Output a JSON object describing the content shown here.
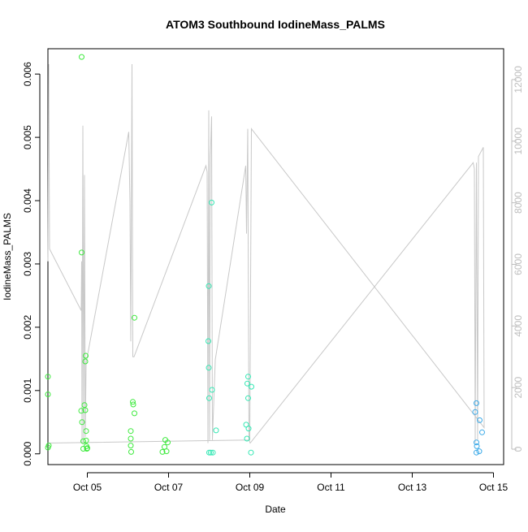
{
  "chart_data": {
    "type": "scatter",
    "title": "ATOM3 Southbound IodineMass_PALMS",
    "xlabel": "Date",
    "ylabel": "IodineMass_PALMS",
    "x_ticks": [
      "Oct 05",
      "Oct 07",
      "Oct 09",
      "Oct 11",
      "Oct 13",
      "Oct 15"
    ],
    "y_ticks": [
      "0.000",
      "0.001",
      "0.002",
      "0.003",
      "0.004",
      "0.005",
      "0.006"
    ],
    "y2_ticks": [
      "0",
      "2000",
      "4000",
      "6000",
      "8000",
      "10000",
      "12000"
    ],
    "xlim_days": [
      4.03,
      15.25
    ],
    "ylim": [
      -0.00017,
      0.0064
    ],
    "y2lim": [
      -500,
      13000
    ],
    "colors": {
      "axis": "#000000",
      "right_axis": "#bdbdbd",
      "altitude_line": "#c8c8c8"
    },
    "series": [
      {
        "color": "#3dea3d",
        "points": [
          [
            4.03,
            0.00122
          ],
          [
            4.03,
            0.00094
          ],
          [
            4.03,
            0.0001
          ],
          [
            4.05,
            0.00013
          ],
          [
            4.86,
            0.00627
          ],
          [
            4.86,
            0.00318
          ],
          [
            4.85,
            0.00068
          ],
          [
            4.87,
            0.0005
          ],
          [
            4.9,
            0.0002
          ],
          [
            4.9,
            8e-05
          ],
          [
            4.93,
            0.00077
          ],
          [
            4.95,
            0.00069
          ],
          [
            4.96,
            0.00155
          ],
          [
            4.95,
            0.00146
          ],
          [
            4.97,
            0.00036
          ],
          [
            4.97,
            0.00021
          ],
          [
            4.98,
            0.00012
          ],
          [
            5.0,
            9e-05
          ],
          [
            4.99,
            8e-05
          ],
          [
            6.07,
            0.00036
          ],
          [
            6.07,
            0.00024
          ],
          [
            6.07,
            0.00013
          ],
          [
            6.08,
            3e-05
          ],
          [
            6.12,
            0.00082
          ],
          [
            6.13,
            0.00078
          ],
          [
            6.16,
            0.00215
          ],
          [
            6.16,
            0.00064
          ],
          [
            6.85,
            3e-05
          ],
          [
            6.9,
            0.00011
          ],
          [
            6.92,
            0.00022
          ],
          [
            6.95,
            4e-05
          ],
          [
            6.98,
            0.00018
          ]
        ]
      },
      {
        "color": "#35e8b4",
        "points": [
          [
            7.98,
            0.00178
          ],
          [
            7.99,
            0.00265
          ],
          [
            7.99,
            0.00136
          ],
          [
            8.0,
            0.00088
          ],
          [
            8.0,
            2e-05
          ],
          [
            8.04,
            2e-05
          ],
          [
            8.06,
            0.00397
          ],
          [
            8.07,
            0.00101
          ],
          [
            8.09,
            2e-05
          ],
          [
            8.17,
            0.00037
          ],
          [
            8.91,
            0.00046
          ],
          [
            8.93,
            0.00024
          ],
          [
            8.96,
            0.00122
          ],
          [
            8.94,
            0.00111
          ],
          [
            8.96,
            0.00088
          ],
          [
            8.97,
            0.0004
          ],
          [
            9.04,
            0.00106
          ],
          [
            9.03,
            2e-05
          ]
        ]
      },
      {
        "color": "#3aa9e8",
        "points": [
          [
            14.55,
            0.00066
          ],
          [
            14.58,
            0.0008
          ],
          [
            14.58,
            0.00018
          ],
          [
            14.59,
            0.00012
          ],
          [
            14.58,
            2e-05
          ],
          [
            14.66,
            0.00053
          ],
          [
            14.65,
            4e-05
          ],
          [
            14.72,
            0.00034
          ]
        ]
      }
    ],
    "altitude_line": [
      [
        4.03,
        6100
      ],
      [
        4.05,
        12500
      ],
      [
        4.07,
        6500
      ],
      [
        4.85,
        4500
      ],
      [
        4.86,
        6100
      ],
      [
        4.87,
        200
      ],
      [
        4.89,
        10500
      ],
      [
        4.91,
        300
      ],
      [
        4.93,
        8900
      ],
      [
        4.95,
        400
      ],
      [
        4.97,
        2800
      ],
      [
        6.02,
        10300
      ],
      [
        6.05,
        8000
      ],
      [
        6.07,
        3500
      ],
      [
        6.1,
        12500
      ],
      [
        6.12,
        3000
      ],
      [
        6.15,
        3000
      ],
      [
        7.92,
        9200
      ],
      [
        7.95,
        9000
      ],
      [
        7.97,
        200
      ],
      [
        7.99,
        11000
      ],
      [
        8.01,
        300
      ],
      [
        8.03,
        9500
      ],
      [
        8.06,
        10800
      ],
      [
        8.08,
        300
      ],
      [
        8.15,
        2900
      ],
      [
        8.9,
        9200
      ],
      [
        8.92,
        7000
      ],
      [
        8.95,
        10400
      ],
      [
        8.98,
        300
      ],
      [
        9.01,
        200
      ],
      [
        14.5,
        9300
      ],
      [
        14.53,
        9100
      ],
      [
        14.55,
        200
      ],
      [
        14.58,
        9300
      ],
      [
        14.61,
        300
      ],
      [
        14.63,
        9500
      ],
      [
        14.75,
        9800
      ],
      [
        14.77,
        700
      ],
      [
        9.04,
        10400
      ],
      [
        9.0,
        300
      ],
      [
        4.03,
        200
      ]
    ]
  }
}
